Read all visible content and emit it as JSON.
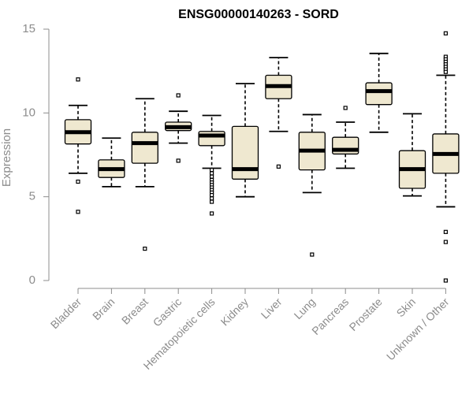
{
  "chart_data": {
    "type": "boxplot",
    "title": "ENSG00000140263 - SORD",
    "xlabel": "",
    "ylabel": "Expression",
    "ylim": [
      0,
      15
    ],
    "yticks": [
      0,
      5,
      10,
      15
    ],
    "grid": false,
    "legend": "none",
    "box_fill": "#efe8d0",
    "median_color": "#000000",
    "categories": [
      "Bladder",
      "Brain",
      "Breast",
      "Gastric",
      "Hematopoietic cells",
      "Kidney",
      "Liver",
      "Lung",
      "Pancreas",
      "Prostate",
      "Skin",
      "Unknown / Other"
    ],
    "boxes": [
      {
        "q1": 8.15,
        "median": 8.85,
        "q3": 9.6,
        "whisker_low": 6.4,
        "whisker_high": 10.45,
        "outliers": [
          12.0,
          5.9,
          4.1
        ]
      },
      {
        "q1": 6.15,
        "median": 6.65,
        "q3": 7.2,
        "whisker_low": 5.6,
        "whisker_high": 8.5,
        "outliers": []
      },
      {
        "q1": 7.0,
        "median": 8.2,
        "q3": 8.85,
        "whisker_low": 5.6,
        "whisker_high": 10.85,
        "outliers": [
          1.9
        ]
      },
      {
        "q1": 8.95,
        "median": 9.15,
        "q3": 9.45,
        "whisker_low": 8.2,
        "whisker_high": 10.1,
        "outliers": [
          11.05,
          7.15
        ]
      },
      {
        "q1": 8.05,
        "median": 8.65,
        "q3": 8.9,
        "whisker_low": 6.7,
        "whisker_high": 9.85,
        "outliers": [
          6.6,
          6.4,
          6.2,
          6.0,
          5.85,
          5.7,
          5.55,
          5.4,
          5.25,
          5.1,
          4.9,
          4.7,
          4.0
        ]
      },
      {
        "q1": 6.05,
        "median": 6.65,
        "q3": 9.2,
        "whisker_low": 5.0,
        "whisker_high": 11.75,
        "outliers": []
      },
      {
        "q1": 10.85,
        "median": 11.6,
        "q3": 12.25,
        "whisker_low": 8.9,
        "whisker_high": 13.3,
        "outliers": [
          6.8
        ]
      },
      {
        "q1": 6.6,
        "median": 7.75,
        "q3": 8.85,
        "whisker_low": 5.25,
        "whisker_high": 9.9,
        "outliers": [
          1.55
        ]
      },
      {
        "q1": 7.55,
        "median": 7.8,
        "q3": 8.55,
        "whisker_low": 6.7,
        "whisker_high": 9.45,
        "outliers": [
          10.3
        ]
      },
      {
        "q1": 10.5,
        "median": 11.3,
        "q3": 11.8,
        "whisker_low": 8.85,
        "whisker_high": 13.55,
        "outliers": []
      },
      {
        "q1": 5.5,
        "median": 6.65,
        "q3": 7.75,
        "whisker_low": 5.05,
        "whisker_high": 9.95,
        "outliers": []
      },
      {
        "q1": 6.4,
        "median": 7.55,
        "q3": 8.75,
        "whisker_low": 4.4,
        "whisker_high": 12.25,
        "outliers": [
          14.75,
          13.35,
          13.2,
          13.05,
          12.9,
          12.75,
          12.6,
          12.45,
          2.9,
          2.3,
          0.0
        ]
      }
    ]
  }
}
